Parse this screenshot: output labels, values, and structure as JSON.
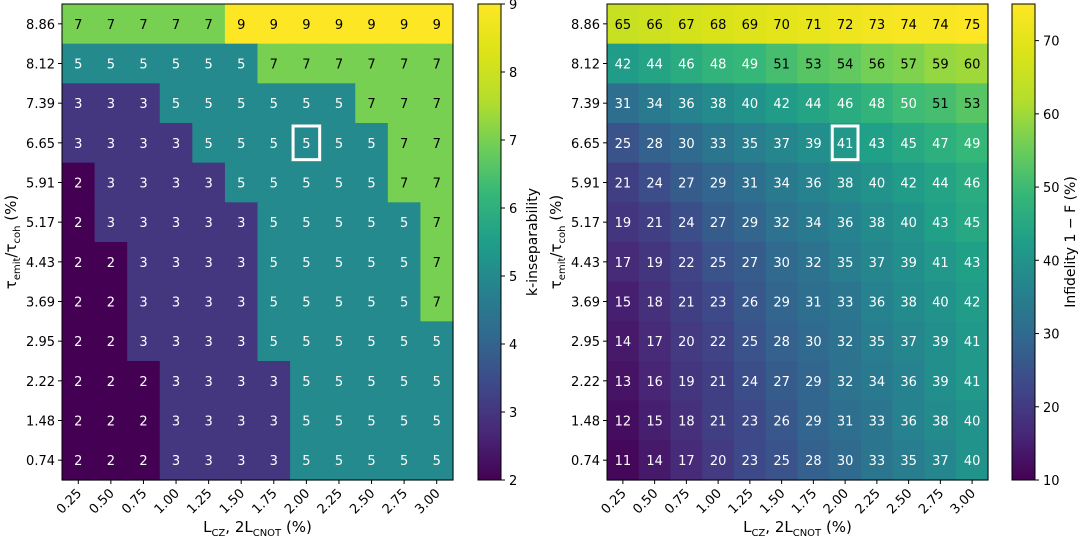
{
  "chart_data": [
    {
      "type": "heatmap",
      "xlabel": "L_CZ, 2L_CNOT (%)",
      "ylabel": "τ_emit/τ_coh (%)",
      "x": [
        "0.25",
        "0.50",
        "0.75",
        "1.00",
        "1.25",
        "1.50",
        "1.75",
        "2.00",
        "2.25",
        "2.50",
        "2.75",
        "3.00"
      ],
      "y": [
        "8.86",
        "8.12",
        "7.39",
        "6.65",
        "5.91",
        "5.17",
        "4.43",
        "3.69",
        "2.95",
        "2.22",
        "1.48",
        "0.74"
      ],
      "values": [
        [
          7,
          7,
          7,
          7,
          7,
          9,
          9,
          9,
          9,
          9,
          9,
          9
        ],
        [
          5,
          5,
          5,
          5,
          5,
          5,
          7,
          7,
          7,
          7,
          7,
          7
        ],
        [
          3,
          3,
          3,
          5,
          5,
          5,
          5,
          5,
          5,
          7,
          7,
          7
        ],
        [
          3,
          3,
          3,
          3,
          5,
          5,
          5,
          5,
          5,
          5,
          7,
          7
        ],
        [
          2,
          3,
          3,
          3,
          3,
          5,
          5,
          5,
          5,
          5,
          7,
          7
        ],
        [
          2,
          3,
          3,
          3,
          3,
          3,
          5,
          5,
          5,
          5,
          5,
          7
        ],
        [
          2,
          2,
          3,
          3,
          3,
          3,
          5,
          5,
          5,
          5,
          5,
          7
        ],
        [
          2,
          2,
          3,
          3,
          3,
          3,
          5,
          5,
          5,
          5,
          5,
          7
        ],
        [
          2,
          2,
          3,
          3,
          3,
          3,
          5,
          5,
          5,
          5,
          5,
          5
        ],
        [
          2,
          2,
          2,
          3,
          3,
          3,
          3,
          5,
          5,
          5,
          5,
          5
        ],
        [
          2,
          2,
          2,
          3,
          3,
          3,
          3,
          5,
          5,
          5,
          5,
          5
        ],
        [
          2,
          2,
          2,
          3,
          3,
          3,
          3,
          5,
          5,
          5,
          5,
          5
        ]
      ],
      "highlight": {
        "x": "2.00",
        "y": "6.65"
      },
      "colorbar": {
        "label": "k-inseparability",
        "range": [
          2,
          9
        ],
        "ticks": [
          "2",
          "3",
          "4",
          "5",
          "6",
          "7",
          "8",
          "9"
        ]
      },
      "colormap": "viridis"
    },
    {
      "type": "heatmap",
      "xlabel": "L_CZ, 2L_CNOT (%)",
      "ylabel": "τ_emit/τ_coh (%)",
      "x": [
        "0.25",
        "0.50",
        "0.75",
        "1.00",
        "1.25",
        "1.50",
        "1.75",
        "2.00",
        "2.25",
        "2.50",
        "2.75",
        "3.00"
      ],
      "y": [
        "8.86",
        "8.12",
        "7.39",
        "6.65",
        "5.91",
        "5.17",
        "4.43",
        "3.69",
        "2.95",
        "2.22",
        "1.48",
        "0.74"
      ],
      "values": [
        [
          65,
          66,
          67,
          68,
          69,
          70,
          71,
          72,
          73,
          74,
          74,
          75
        ],
        [
          42,
          44,
          46,
          48,
          49,
          51,
          53,
          54,
          56,
          57,
          59,
          60
        ],
        [
          31,
          34,
          36,
          38,
          40,
          42,
          44,
          46,
          48,
          50,
          51,
          53
        ],
        [
          25,
          28,
          30,
          33,
          35,
          37,
          39,
          41,
          43,
          45,
          47,
          49
        ],
        [
          21,
          24,
          27,
          29,
          31,
          34,
          36,
          38,
          40,
          42,
          44,
          46
        ],
        [
          19,
          21,
          24,
          27,
          29,
          32,
          34,
          36,
          38,
          40,
          43,
          45
        ],
        [
          17,
          19,
          22,
          25,
          27,
          30,
          32,
          35,
          37,
          39,
          41,
          43
        ],
        [
          15,
          18,
          21,
          23,
          26,
          29,
          31,
          33,
          36,
          38,
          40,
          42
        ],
        [
          14,
          17,
          20,
          22,
          25,
          28,
          30,
          32,
          35,
          37,
          39,
          41
        ],
        [
          13,
          16,
          19,
          21,
          24,
          27,
          29,
          32,
          34,
          36,
          39,
          41
        ],
        [
          12,
          15,
          18,
          21,
          23,
          26,
          29,
          31,
          33,
          36,
          38,
          40
        ],
        [
          11,
          14,
          17,
          20,
          23,
          25,
          28,
          30,
          33,
          35,
          37,
          40
        ]
      ],
      "highlight": {
        "x": "2.00",
        "y": "6.65"
      },
      "colorbar": {
        "label": "Infidelity 1 − F (%)",
        "range": [
          10,
          75
        ],
        "ticks": [
          "10",
          "20",
          "30",
          "40",
          "50",
          "60",
          "70"
        ]
      },
      "colormap": "viridis"
    }
  ]
}
